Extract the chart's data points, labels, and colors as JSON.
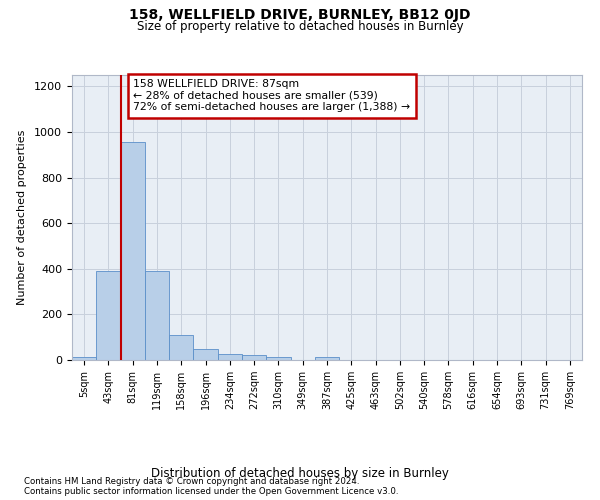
{
  "title": "158, WELLFIELD DRIVE, BURNLEY, BB12 0JD",
  "subtitle": "Size of property relative to detached houses in Burnley",
  "xlabel": "Distribution of detached houses by size in Burnley",
  "ylabel": "Number of detached properties",
  "categories": [
    "5sqm",
    "43sqm",
    "81sqm",
    "119sqm",
    "158sqm",
    "196sqm",
    "234sqm",
    "272sqm",
    "310sqm",
    "349sqm",
    "387sqm",
    "425sqm",
    "463sqm",
    "502sqm",
    "540sqm",
    "578sqm",
    "616sqm",
    "654sqm",
    "693sqm",
    "731sqm",
    "769sqm"
  ],
  "values": [
    15,
    390,
    955,
    390,
    110,
    50,
    25,
    20,
    15,
    0,
    15,
    0,
    0,
    0,
    0,
    0,
    0,
    0,
    0,
    0,
    0
  ],
  "highlight_color": "#c00000",
  "bar_color": "#b8cfe8",
  "bar_edge_color": "#5b8fc9",
  "annotation_text": "158 WELLFIELD DRIVE: 87sqm\n← 28% of detached houses are smaller (539)\n72% of semi-detached houses are larger (1,388) →",
  "annotation_box_color": "#ffffff",
  "annotation_box_edge": "#c00000",
  "ylim": [
    0,
    1250
  ],
  "yticks": [
    0,
    200,
    400,
    600,
    800,
    1000,
    1200
  ],
  "footer_line1": "Contains HM Land Registry data © Crown copyright and database right 2024.",
  "footer_line2": "Contains public sector information licensed under the Open Government Licence v3.0.",
  "background_color": "#ffffff",
  "axes_bg_color": "#e8eef5",
  "grid_color": "#c8d0dc"
}
